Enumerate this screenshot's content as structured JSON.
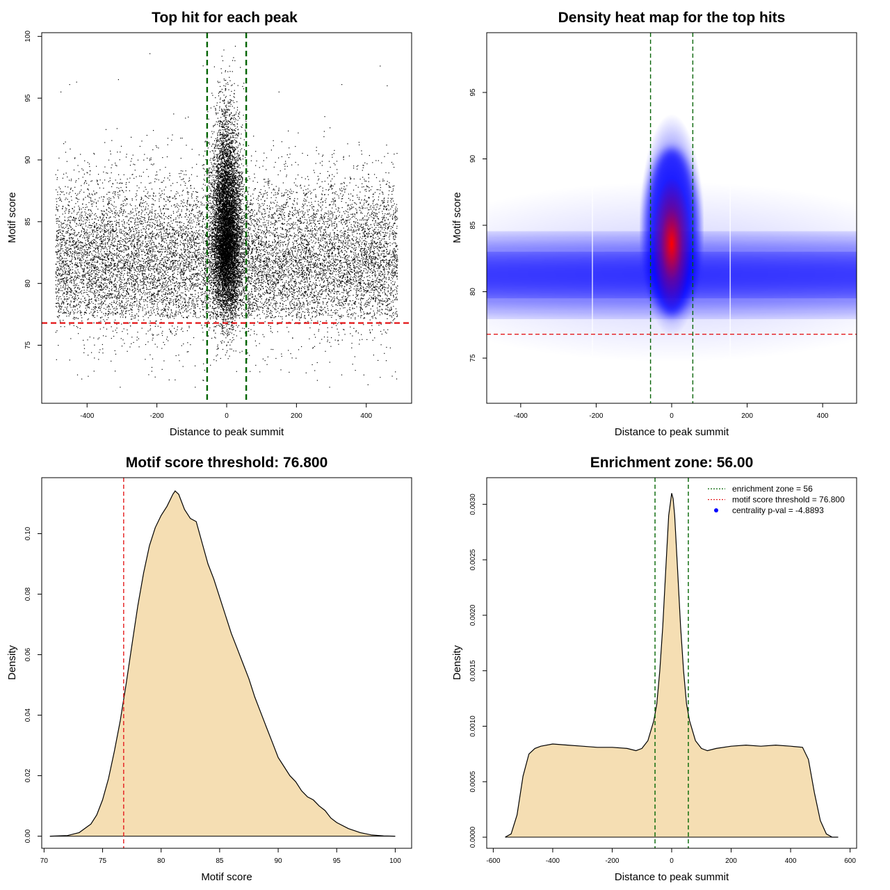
{
  "chart_data": [
    {
      "id": "scatter",
      "type": "scatter",
      "title": "Top hit for each peak",
      "xlabel": "Distance to peak summit",
      "ylabel": "Motif score",
      "xlim": [
        -530,
        530
      ],
      "ylim": [
        70.3,
        100.3
      ],
      "xticks": [
        -400,
        -200,
        0,
        200,
        400
      ],
      "yticks": [
        75,
        80,
        85,
        90,
        95,
        100
      ],
      "point_color": "#000000",
      "vlines": [
        {
          "x": -56,
          "color": "#006400"
        },
        {
          "x": 56,
          "color": "#006400"
        }
      ],
      "hlines": [
        {
          "y": 76.8,
          "color": "#e41a1c"
        }
      ],
      "background": {
        "x_range": [
          -490,
          490
        ],
        "y_mean": 81.5,
        "y_sd": 3.5
      },
      "central_peak": {
        "x_sd": 20,
        "y_mean": 84.0,
        "y_sd": 4.5
      },
      "outliers": [
        {
          "x": -475,
          "y": 95.5
        },
        {
          "x": -450,
          "y": 96.1
        },
        {
          "x": -430,
          "y": 96.3
        },
        {
          "x": -220,
          "y": 98.6
        },
        {
          "x": -310,
          "y": 96.5
        },
        {
          "x": 150,
          "y": 95.5
        },
        {
          "x": 330,
          "y": 96.1
        },
        {
          "x": 440,
          "y": 97.6
        },
        {
          "x": 460,
          "y": 96.0
        },
        {
          "x": -380,
          "y": 72.9
        },
        {
          "x": -305,
          "y": 71.6
        },
        {
          "x": -90,
          "y": 71.6
        },
        {
          "x": 295,
          "y": 71.6
        },
        {
          "x": 405,
          "y": 71.8
        },
        {
          "x": 440,
          "y": 72.4
        },
        {
          "x": 25,
          "y": 99.2
        },
        {
          "x": -8,
          "y": 98.9
        }
      ]
    },
    {
      "id": "heatmap",
      "type": "heatmap",
      "title": "Density heat map for the top hits",
      "xlabel": "Distance to peak summit",
      "ylabel": "Motif score",
      "xlim": [
        -490,
        490
      ],
      "ylim": [
        71.6,
        99.5
      ],
      "xticks": [
        -400,
        -200,
        0,
        200,
        400
      ],
      "yticks": [
        75,
        80,
        85,
        90,
        95
      ],
      "colors": [
        "#ffffff",
        "#0000ff",
        "#ff0000"
      ],
      "vlines": [
        {
          "x": -56,
          "color": "#006400"
        },
        {
          "x": 56,
          "color": "#006400"
        }
      ],
      "hlines": [
        {
          "y": 76.8,
          "color": "#e41a1c"
        }
      ],
      "white_seams_x": [
        -210,
        155
      ]
    },
    {
      "id": "score_density",
      "type": "area",
      "title": "Motif score threshold: 76.800",
      "xlabel": "Motif score",
      "ylabel": "Density",
      "xlim": [
        69.8,
        101.4
      ],
      "ylim": [
        -0.004,
        0.1185
      ],
      "xticks": [
        70,
        75,
        80,
        85,
        90,
        95,
        100
      ],
      "yticks": [
        0.0,
        0.02,
        0.04,
        0.06,
        0.08,
        0.1
      ],
      "ytick_labels": [
        "0.00",
        "0.02",
        "0.04",
        "0.06",
        "0.08",
        "0.10"
      ],
      "fill": "#f5deb3",
      "vlines": [
        {
          "x": 76.8,
          "color": "#e41a1c"
        }
      ],
      "x": [
        70.5,
        72,
        73,
        74,
        74.5,
        75,
        75.5,
        76,
        76.5,
        77,
        77.5,
        78,
        78.5,
        79,
        79.5,
        80,
        80.5,
        81,
        81.2,
        81.5,
        82,
        82.5,
        83,
        83.5,
        84,
        84.5,
        85,
        85.5,
        86,
        86.5,
        87,
        87.5,
        88,
        88.5,
        89,
        89.5,
        90,
        90.5,
        91,
        91.5,
        92,
        92.5,
        93,
        93.5,
        94,
        94.5,
        95,
        96,
        97,
        98,
        99,
        100
      ],
      "y": [
        0.0,
        0.0002,
        0.0012,
        0.004,
        0.007,
        0.012,
        0.019,
        0.028,
        0.038,
        0.05,
        0.063,
        0.076,
        0.087,
        0.096,
        0.102,
        0.106,
        0.109,
        0.113,
        0.1141,
        0.113,
        0.108,
        0.105,
        0.104,
        0.097,
        0.09,
        0.085,
        0.079,
        0.073,
        0.067,
        0.062,
        0.057,
        0.052,
        0.046,
        0.041,
        0.036,
        0.031,
        0.026,
        0.023,
        0.02,
        0.018,
        0.015,
        0.013,
        0.012,
        0.01,
        0.0085,
        0.006,
        0.0045,
        0.0025,
        0.0012,
        0.0004,
        0.0001,
        0.0
      ]
    },
    {
      "id": "distance_density",
      "type": "area",
      "title": "Enrichment zone: 56.00",
      "xlabel": "Distance to peak summit",
      "ylabel": "Density",
      "xlim": [
        -622,
        622
      ],
      "ylim": [
        -0.0001,
        0.00324
      ],
      "xticks": [
        -600,
        -400,
        -200,
        0,
        200,
        400,
        600
      ],
      "yticks": [
        0.0,
        0.0005,
        0.001,
        0.0015,
        0.002,
        0.0025,
        0.003
      ],
      "ytick_labels": [
        "0.0000",
        "0.0005",
        "0.0010",
        "0.0015",
        "0.0020",
        "0.0025",
        "0.0030"
      ],
      "fill": "#f5deb3",
      "vlines": [
        {
          "x": -56,
          "color": "#006400"
        },
        {
          "x": 56,
          "color": "#006400"
        }
      ],
      "x": [
        -560,
        -540,
        -520,
        -500,
        -480,
        -460,
        -440,
        -400,
        -350,
        -300,
        -250,
        -200,
        -150,
        -120,
        -100,
        -80,
        -60,
        -50,
        -40,
        -30,
        -20,
        -10,
        -5,
        0,
        5,
        10,
        20,
        30,
        40,
        50,
        60,
        80,
        100,
        120,
        150,
        200,
        250,
        300,
        350,
        400,
        440,
        460,
        480,
        500,
        520,
        540,
        560
      ],
      "y": [
        0.0,
        3e-05,
        0.0002,
        0.00055,
        0.00075,
        0.0008,
        0.00082,
        0.00084,
        0.00083,
        0.00082,
        0.00081,
        0.00081,
        0.0008,
        0.00078,
        0.0008,
        0.00087,
        0.00105,
        0.0012,
        0.0015,
        0.0019,
        0.0024,
        0.0029,
        0.003,
        0.0031,
        0.00305,
        0.0029,
        0.0024,
        0.0019,
        0.0015,
        0.0012,
        0.00105,
        0.00087,
        0.0008,
        0.00078,
        0.0008,
        0.00082,
        0.00083,
        0.00082,
        0.00083,
        0.00082,
        0.00081,
        0.0007,
        0.0004,
        0.00015,
        3e-05,
        0.0,
        0.0
      ],
      "legend": [
        {
          "label": "enrichment zone = 56",
          "color": "#006400",
          "style": "dotted-line"
        },
        {
          "label": "motif score threshold = 76.800",
          "color": "#e41a1c",
          "style": "dotted-line"
        },
        {
          "label": "centrality p-val = -4.8893",
          "color": "#0000ff",
          "style": "point"
        }
      ],
      "legend_position": "top-right"
    }
  ]
}
